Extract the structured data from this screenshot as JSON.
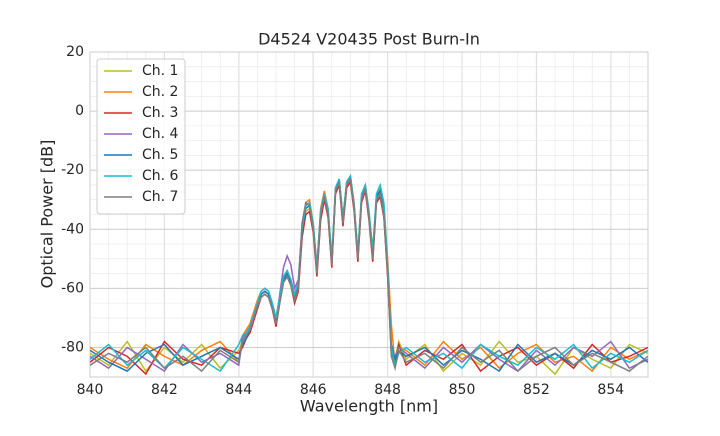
{
  "chart_data": {
    "type": "line",
    "title": "D4524 V20435 Post Burn-In",
    "x_label": "Wavelength [nm]",
    "y_label": "Optical Power [dB]",
    "x": [
      840,
      840.5,
      841,
      841.5,
      842,
      842.5,
      843,
      843.5,
      844,
      844.1,
      844.2,
      844.3,
      844.4,
      844.5,
      844.6,
      844.7,
      844.8,
      844.9,
      845,
      845.1,
      845.2,
      845.3,
      845.4,
      845.5,
      845.6,
      845.7,
      845.8,
      845.9,
      846,
      846.1,
      846.2,
      846.3,
      846.4,
      846.5,
      846.6,
      846.7,
      846.8,
      846.9,
      847,
      847.1,
      847.2,
      847.3,
      847.4,
      847.5,
      847.6,
      847.7,
      847.8,
      847.9,
      848,
      848.1,
      848.2,
      848.3,
      848.5,
      849,
      849.5,
      850,
      850.5,
      851,
      851.5,
      852,
      852.5,
      853,
      853.5,
      854,
      854.5,
      855
    ],
    "series": [
      {
        "name": "Ch. 1",
        "color": "#bcbd22",
        "values": [
          -82,
          -86,
          -78,
          -88,
          -80,
          -85,
          -79,
          -87,
          -81,
          -78,
          -76,
          -74,
          -70,
          -66,
          -62,
          -61,
          -62,
          -66,
          -72,
          -64,
          -57,
          -55,
          -58,
          -64,
          -60,
          -42,
          -34,
          -33,
          -40,
          -55,
          -36,
          -29,
          -35,
          -52,
          -27,
          -24,
          -38,
          -25,
          -23,
          -33,
          -50,
          -30,
          -26,
          -36,
          -50,
          -30,
          -28,
          -35,
          -55,
          -80,
          -84,
          -78,
          -84,
          -79,
          -88,
          -82,
          -86,
          -78,
          -85,
          -83,
          -89,
          -80,
          -84,
          -87,
          -79,
          -82
        ]
      },
      {
        "name": "Ch. 2",
        "color": "#ff7f0e",
        "values": [
          -80,
          -84,
          -87,
          -79,
          -83,
          -86,
          -81,
          -78,
          -85,
          -76,
          -74,
          -72,
          -68,
          -64,
          -61,
          -60,
          -61,
          -65,
          -70,
          -63,
          -56,
          -54,
          -57,
          -63,
          -58,
          -40,
          -31,
          -30,
          -38,
          -53,
          -33,
          -27,
          -33,
          -50,
          -26,
          -23,
          -36,
          -24,
          -22,
          -31,
          -48,
          -29,
          -25,
          -34,
          -48,
          -29,
          -26,
          -32,
          -50,
          -72,
          -86,
          -80,
          -81,
          -86,
          -78,
          -84,
          -80,
          -87,
          -82,
          -79,
          -85,
          -83,
          -88,
          -80,
          -84,
          -81
        ]
      },
      {
        "name": "Ch. 3",
        "color": "#d62728",
        "values": [
          -85,
          -80,
          -83,
          -89,
          -78,
          -84,
          -86,
          -80,
          -82,
          -80,
          -77,
          -75,
          -71,
          -67,
          -63,
          -62,
          -63,
          -67,
          -73,
          -65,
          -58,
          -56,
          -59,
          -65,
          -61,
          -43,
          -35,
          -34,
          -41,
          -56,
          -37,
          -30,
          -36,
          -53,
          -28,
          -25,
          -39,
          -26,
          -24,
          -34,
          -51,
          -31,
          -27,
          -37,
          -51,
          -31,
          -29,
          -36,
          -56,
          -82,
          -85,
          -79,
          -86,
          -81,
          -84,
          -79,
          -88,
          -83,
          -80,
          -86,
          -82,
          -87,
          -79,
          -85,
          -83,
          -80
        ]
      },
      {
        "name": "Ch. 4",
        "color": "#9467bd",
        "values": [
          -83,
          -87,
          -80,
          -84,
          -88,
          -79,
          -85,
          -82,
          -86,
          -77,
          -75,
          -73,
          -69,
          -65,
          -62,
          -61,
          -62,
          -66,
          -71,
          -62,
          -53,
          -49,
          -52,
          -60,
          -57,
          -39,
          -32,
          -31,
          -39,
          -52,
          -34,
          -28,
          -34,
          -51,
          -27,
          -24,
          -37,
          -25,
          -23,
          -33,
          -49,
          -30,
          -26,
          -35,
          -49,
          -30,
          -28,
          -34,
          -54,
          -81,
          -83,
          -80,
          -82,
          -87,
          -80,
          -85,
          -79,
          -84,
          -88,
          -81,
          -86,
          -80,
          -83,
          -78,
          -87,
          -84
        ]
      },
      {
        "name": "Ch. 5",
        "color": "#1f77b4",
        "values": [
          -81,
          -85,
          -88,
          -82,
          -79,
          -86,
          -83,
          -80,
          -84,
          -79,
          -77,
          -74,
          -70,
          -66,
          -62,
          -61,
          -62,
          -66,
          -71,
          -64,
          -57,
          -55,
          -58,
          -63,
          -59,
          -41,
          -33,
          -32,
          -39,
          -54,
          -35,
          -28,
          -34,
          -51,
          -26,
          -23,
          -37,
          -24,
          -22,
          -32,
          -49,
          -29,
          -25,
          -35,
          -49,
          -29,
          -27,
          -34,
          -53,
          -79,
          -84,
          -81,
          -83,
          -80,
          -86,
          -81,
          -84,
          -88,
          -79,
          -85,
          -82,
          -86,
          -81,
          -84,
          -80,
          -85
        ]
      },
      {
        "name": "Ch. 6",
        "color": "#17becf",
        "values": [
          -84,
          -79,
          -86,
          -81,
          -87,
          -80,
          -84,
          -88,
          -79,
          -76,
          -75,
          -73,
          -69,
          -65,
          -61,
          -60,
          -61,
          -65,
          -70,
          -63,
          -56,
          -54,
          -57,
          -62,
          -58,
          -40,
          -32,
          -31,
          -38,
          -53,
          -34,
          -28,
          -33,
          -50,
          -26,
          -23,
          -36,
          -24,
          -22,
          -32,
          -48,
          -28,
          -25,
          -34,
          -47,
          -28,
          -25,
          -31,
          -52,
          -80,
          -86,
          -82,
          -80,
          -85,
          -82,
          -87,
          -79,
          -83,
          -86,
          -80,
          -84,
          -79,
          -87,
          -82,
          -85,
          -81
        ]
      },
      {
        "name": "Ch. 7",
        "color": "#7f7f7f",
        "values": [
          -86,
          -82,
          -85,
          -80,
          -87,
          -83,
          -88,
          -81,
          -85,
          -78,
          -76,
          -74,
          -70,
          -66,
          -63,
          -62,
          -63,
          -67,
          -72,
          -65,
          -58,
          -56,
          -59,
          -64,
          -60,
          -38,
          -31,
          -32,
          -40,
          -55,
          -35,
          -29,
          -35,
          -52,
          -27,
          -24,
          -38,
          -25,
          -23,
          -33,
          -50,
          -30,
          -26,
          -36,
          -50,
          -30,
          -28,
          -35,
          -55,
          -83,
          -87,
          -81,
          -85,
          -82,
          -87,
          -80,
          -85,
          -81,
          -88,
          -83,
          -80,
          -86,
          -82,
          -85,
          -88,
          -83
        ]
      }
    ],
    "xlim": [
      840,
      855
    ],
    "xticks": [
      840,
      842,
      844,
      846,
      848,
      850,
      852,
      854
    ],
    "ylim": [
      -90,
      20
    ],
    "yticks": [
      -80,
      -60,
      -40,
      -20,
      0,
      20
    ],
    "grid": true,
    "legend": "upper left"
  }
}
